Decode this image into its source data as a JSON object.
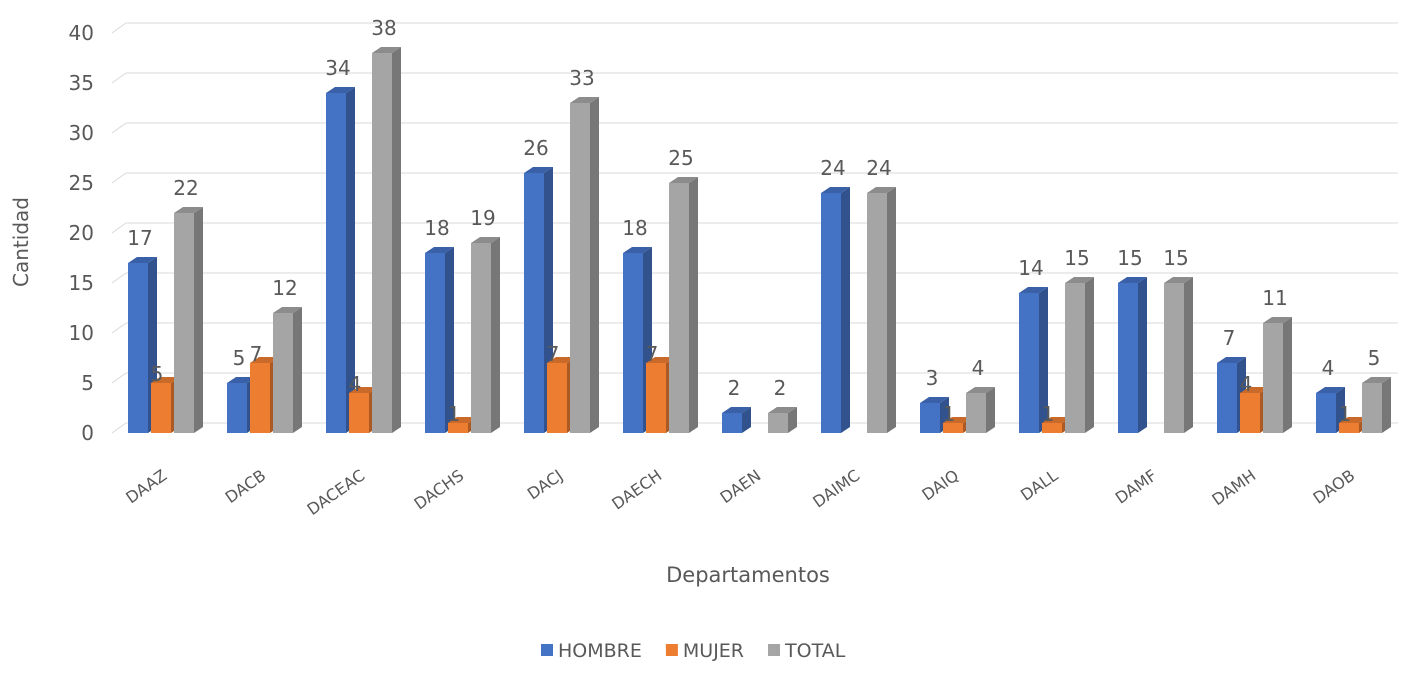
{
  "chart_data": {
    "type": "bar",
    "categories": [
      "DAAZ",
      "DACB",
      "DACEAC",
      "DACHS",
      "DACJ",
      "DAECH",
      "DAEN",
      "DAIMC",
      "DAIQ",
      "DALL",
      "DAMF",
      "DAMH",
      "DAOB"
    ],
    "series": [
      {
        "name": "HOMBRE",
        "color": "#4472c4",
        "values": [
          17,
          5,
          34,
          18,
          26,
          18,
          2,
          24,
          3,
          14,
          15,
          7,
          4
        ]
      },
      {
        "name": "MUJER",
        "color": "#ed7d31",
        "values": [
          5,
          7,
          4,
          1,
          7,
          7,
          0,
          0,
          1,
          1,
          0,
          4,
          1
        ]
      },
      {
        "name": "TOTAL",
        "color": "#a5a5a5",
        "values": [
          22,
          12,
          38,
          19,
          33,
          25,
          2,
          24,
          4,
          15,
          15,
          11,
          5
        ]
      }
    ],
    "xlabel": "Departamentos",
    "ylabel": "Cantidad",
    "ylim": [
      0,
      40
    ],
    "yticks": [
      0,
      5,
      10,
      15,
      20,
      25,
      30,
      35,
      40
    ],
    "grid": true,
    "legend_position": "bottom",
    "style": "3d-clustered-column"
  }
}
